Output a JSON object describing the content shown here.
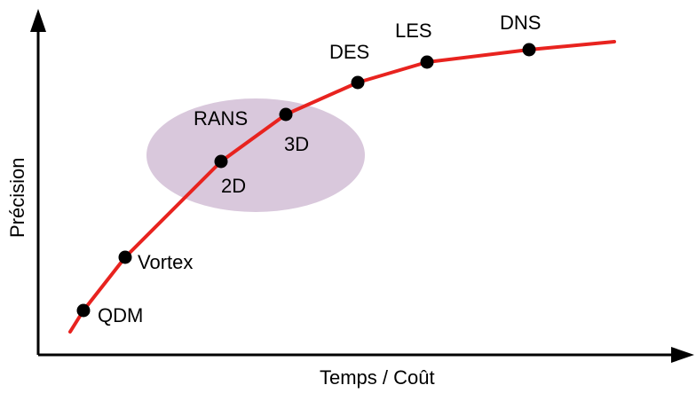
{
  "diagram": {
    "y_axis_label": "Précision",
    "x_axis_label": "Temps / Coût",
    "curve_color": "#e8231f",
    "highlight_color": "#d9c8dc",
    "points": [
      {
        "id": "qdm",
        "label": "QDM"
      },
      {
        "id": "vortex",
        "label": "Vortex"
      },
      {
        "id": "rans2d",
        "label": "2D"
      },
      {
        "id": "rans3d",
        "label": "3D"
      },
      {
        "id": "des",
        "label": "DES"
      },
      {
        "id": "les",
        "label": "LES"
      },
      {
        "id": "dns",
        "label": "DNS"
      }
    ],
    "group_label": "RANS"
  }
}
